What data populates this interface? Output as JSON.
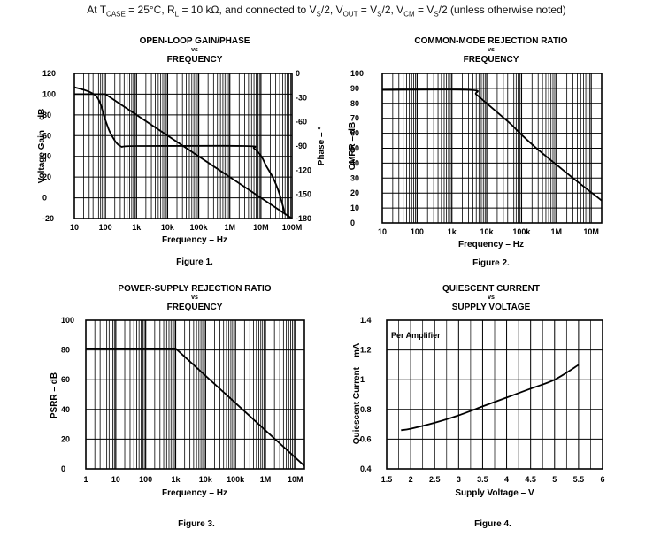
{
  "header": {
    "prefix": "At T",
    "tcase_sub": "CASE",
    "part1": " = 25°C, R",
    "rl_sub": "L",
    "part2": " = 10 kΩ, and connected to V",
    "vs_sub1": "S",
    "part3": "/2, V",
    "vout_sub": "OUT",
    "part4": " = V",
    "vs_sub2": "S",
    "part5": "/2, V",
    "vcm_sub": "CM",
    "part6": " = V",
    "vs_sub3": "S",
    "part7": "/2 (unless otherwise noted)"
  },
  "chart_data": [
    {
      "type": "line",
      "title": "OPEN-LOOP GAIN/PHASE",
      "vs": "vs",
      "subtitle": "FREQUENCY",
      "xlabel": "Frequency – Hz",
      "ylabel": "Voltage Gain – dB",
      "y2label": "Phase – °",
      "caption": "Figure 1.",
      "xscale": "log",
      "xlim": [
        10,
        100000000
      ],
      "ylim": [
        -20,
        120
      ],
      "y2lim": [
        -180,
        0
      ],
      "xtick_labels": [
        "10",
        "100",
        "1k",
        "10k",
        "100k",
        "1M",
        "10M",
        "100M"
      ],
      "ytick_labels": [
        "120",
        "100",
        "80",
        "60",
        "40",
        "20",
        "0",
        "-20"
      ],
      "y2tick_labels": [
        "0",
        "-30",
        "-60",
        "-90",
        "-120",
        "-150",
        "-180"
      ],
      "grid": true,
      "series": [
        {
          "axis": "left",
          "x": [
            10,
            100,
            100000000
          ],
          "y": [
            100,
            100,
            -20
          ]
        },
        {
          "axis": "right",
          "x": [
            10,
            50,
            100,
            150,
            300,
            1000,
            3000000,
            6000000,
            10000000,
            15000000,
            25000000,
            40000000,
            60000000
          ],
          "y": [
            -17,
            -28,
            -58,
            -75,
            -90,
            -90,
            -90,
            -93,
            -102,
            -115,
            -130,
            -150,
            -175
          ]
        }
      ]
    },
    {
      "type": "line",
      "title": "COMMON-MODE REJECTION RATIO",
      "vs": "vs",
      "subtitle": "FREQUENCY",
      "xlabel": "Frequency – Hz",
      "ylabel": "CMRR – dB",
      "caption": "Figure 2.",
      "xscale": "log",
      "xlim": [
        10,
        20000000
      ],
      "ylim": [
        0,
        100
      ],
      "xtick_labels": [
        "10",
        "100",
        "1k",
        "10k",
        "100k",
        "1M",
        "10M"
      ],
      "ytick_labels": [
        "100",
        "90",
        "80",
        "70",
        "60",
        "50",
        "40",
        "30",
        "20",
        "10",
        "0"
      ],
      "grid": true,
      "series": [
        {
          "x": [
            10,
            3200,
            5000,
            10000,
            20000,
            50000,
            100000,
            300000,
            1000000,
            3000000,
            20000000
          ],
          "y": [
            89,
            89,
            86,
            80,
            74,
            66,
            59,
            49,
            39,
            30,
            15
          ]
        }
      ]
    },
    {
      "type": "line",
      "title": "POWER-SUPPLY REJECTION RATIO",
      "vs": "vs",
      "subtitle": "FREQUENCY",
      "xlabel": "Frequency – Hz",
      "ylabel": "PSRR – dB",
      "caption": "Figure 3.",
      "xscale": "log",
      "xlim": [
        1,
        20000000
      ],
      "ylim": [
        0,
        100
      ],
      "xtick_labels": [
        "1",
        "10",
        "100",
        "1k",
        "10k",
        "100k",
        "1M",
        "10M"
      ],
      "ytick_labels": [
        "100",
        "80",
        "60",
        "40",
        "20",
        "0"
      ],
      "grid": true,
      "series": [
        {
          "x": [
            1,
            1000,
            20000000
          ],
          "y": [
            81,
            81,
            2
          ]
        }
      ]
    },
    {
      "type": "line",
      "title": "QUIESCENT CURRENT",
      "vs": "vs",
      "subtitle": "SUPPLY VOLTAGE",
      "xlabel": "Supply Voltage – V",
      "ylabel": "Quiescent Current – mA",
      "caption": "Figure 4.",
      "annotation": "Per Amplifier",
      "xscale": "linear",
      "xlim": [
        1.5,
        6
      ],
      "ylim": [
        0.4,
        1.4
      ],
      "xtick_labels": [
        "1.5",
        "2",
        "2.5",
        "3",
        "3.5",
        "4",
        "4.5",
        "5",
        "5.5",
        "6"
      ],
      "ytick_labels": [
        "1.4",
        "1.2",
        "1",
        "0.8",
        "0.6",
        "0.4"
      ],
      "grid": true,
      "series": [
        {
          "x": [
            1.8,
            2.0,
            2.5,
            3.0,
            3.5,
            4.0,
            4.5,
            5.0,
            5.5
          ],
          "y": [
            0.66,
            0.67,
            0.71,
            0.76,
            0.82,
            0.88,
            0.94,
            1.0,
            1.1
          ]
        }
      ]
    }
  ]
}
